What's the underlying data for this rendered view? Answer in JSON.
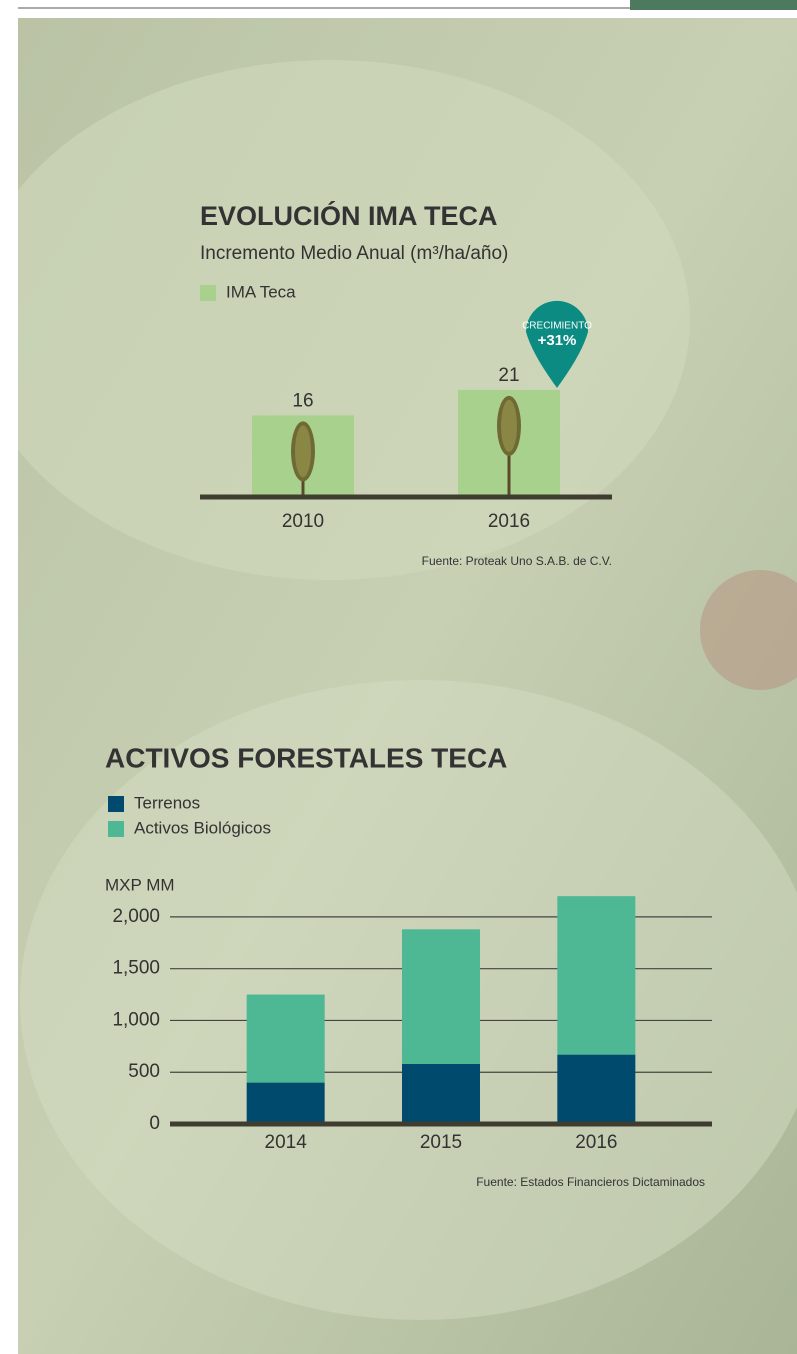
{
  "chart_data": [
    {
      "type": "bar",
      "title": "EVOLUCIÓN IMA TECA",
      "subtitle": "Incremento Medio Anual (m³/ha/año)",
      "categories": [
        "2010",
        "2016"
      ],
      "series": [
        {
          "name": "IMA Teca",
          "color": "#a9d18e",
          "values": [
            16,
            21
          ]
        }
      ],
      "annotations": [
        "CRECIMIENTO",
        "+31%"
      ],
      "source": "Fuente: Proteak Uno S.A.B. de C.V."
    },
    {
      "type": "stacked_bar",
      "title": "ACTIVOS FORESTALES TECA",
      "y_label": "MXP MM",
      "categories": [
        "2014",
        "2015",
        "2016"
      ],
      "series": [
        {
          "name": "Terrenos",
          "color": "#004a6d",
          "values": [
            400,
            580,
            670
          ]
        },
        {
          "name": "Activos Biológicos",
          "color": "#4db893",
          "values": [
            850,
            1300,
            1530
          ]
        }
      ],
      "ylim": [
        0,
        2250
      ],
      "yticks": [
        0,
        500,
        {
          "value": 1000,
          "label": "1,000"
        },
        {
          "value": 1500,
          "label": "1,500"
        },
        {
          "value": 2000,
          "label": "2,000"
        }
      ],
      "grid": true,
      "source": "Fuente: Estados Financieros Dictaminados"
    }
  ]
}
